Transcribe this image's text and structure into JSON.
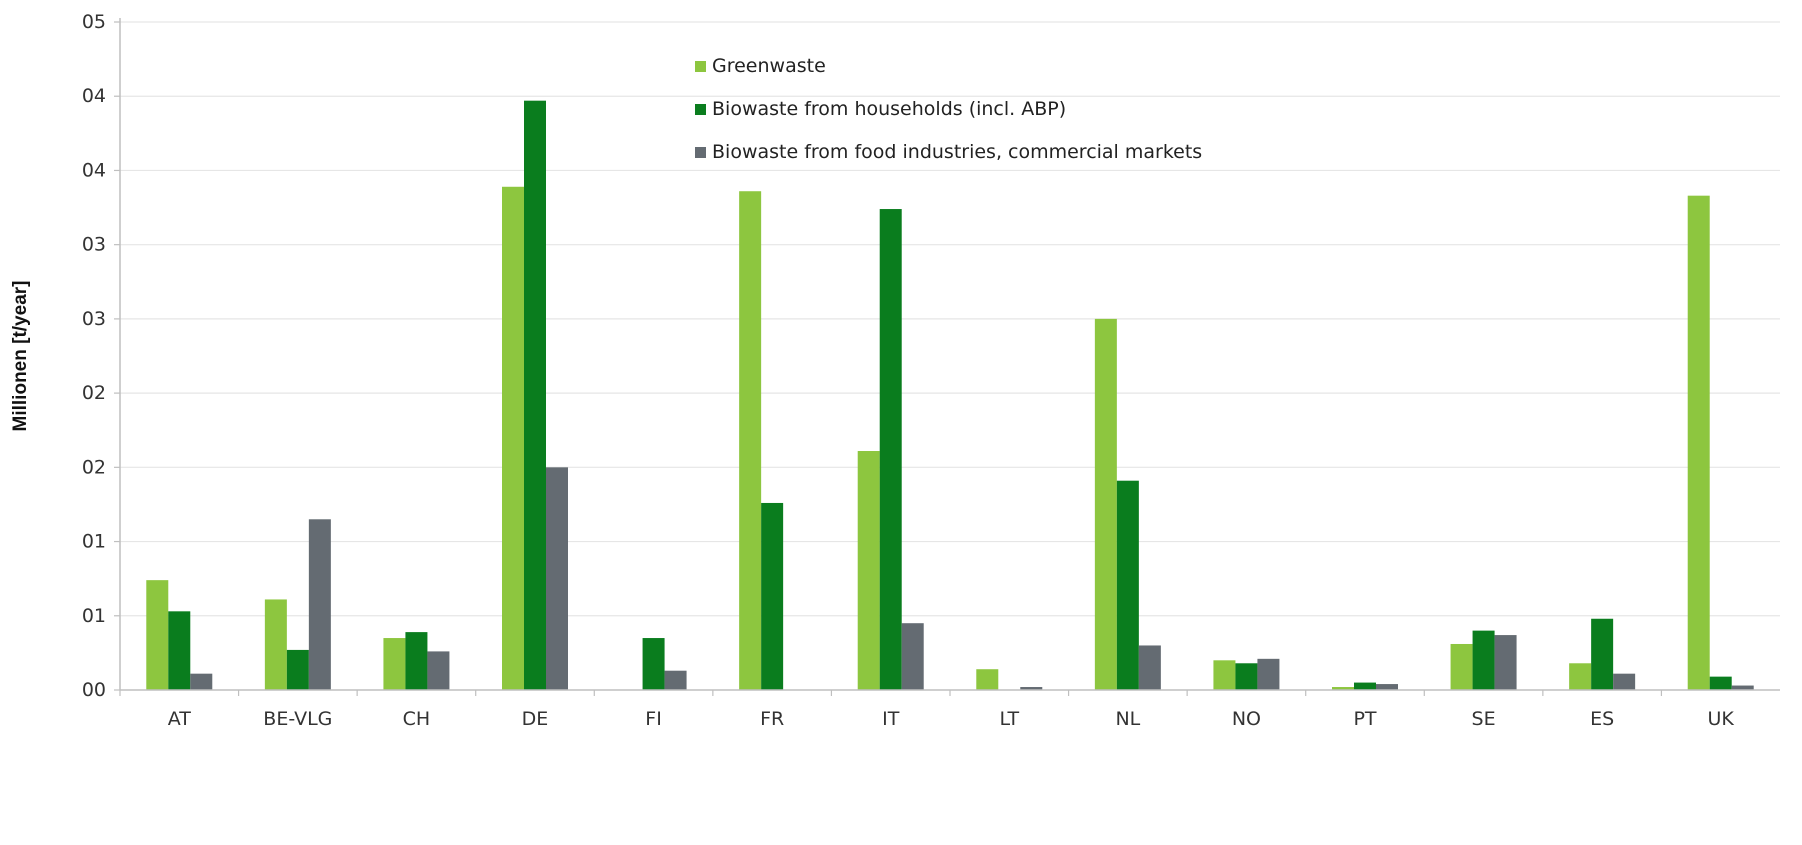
{
  "chart_data": {
    "type": "bar",
    "title": "",
    "xlabel": "",
    "ylabel": "Millionen [t/year]",
    "ylim": [
      0,
      4.5
    ],
    "yticks": [
      0,
      0.5,
      1.0,
      1.5,
      2.0,
      2.5,
      3.0,
      3.5,
      4.0,
      4.5
    ],
    "ytick_labels": [
      "00",
      "01",
      "01",
      "02",
      "02",
      "03",
      "03",
      "04",
      "04",
      "05"
    ],
    "categories": [
      "AT",
      "BE-VLG",
      "CH",
      "DE",
      "FI",
      "FR",
      "IT",
      "LT",
      "NL",
      "NO",
      "PT",
      "SE",
      "ES",
      "UK"
    ],
    "series": [
      {
        "name": "Greenwaste",
        "color": "#8dc63f",
        "values": [
          0.74,
          0.61,
          0.35,
          3.39,
          0.0,
          3.36,
          1.61,
          0.14,
          2.5,
          0.2,
          0.02,
          0.31,
          0.18,
          3.33
        ]
      },
      {
        "name": "Biowaste from households (incl. ABP)",
        "color": "#0a7d1e",
        "values": [
          0.53,
          0.27,
          0.39,
          3.97,
          0.35,
          1.26,
          3.24,
          0.0,
          1.41,
          0.18,
          0.05,
          0.4,
          0.48,
          0.09
        ]
      },
      {
        "name": "Biowaste from food industries, commercial markets",
        "color": "#646b72",
        "values": [
          0.11,
          1.15,
          0.26,
          1.5,
          0.13,
          0.0,
          0.45,
          0.02,
          0.3,
          0.21,
          0.04,
          0.37,
          0.11,
          0.03
        ]
      }
    ],
    "grid": true,
    "legend_position": "top-center"
  }
}
